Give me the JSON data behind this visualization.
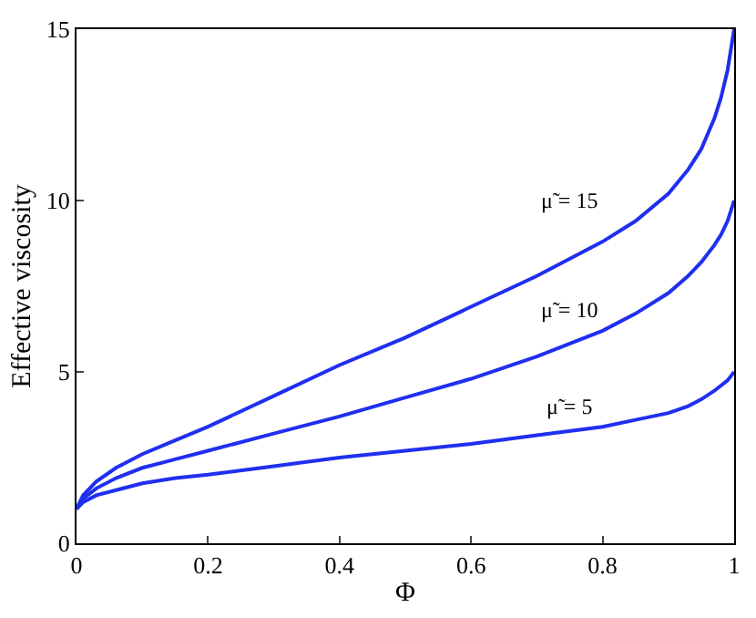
{
  "chart_data": {
    "type": "line",
    "xlabel": "Φ",
    "ylabel": "Effective viscosity",
    "x": [
      0,
      0.01,
      0.03,
      0.06,
      0.1,
      0.15,
      0.2,
      0.3,
      0.4,
      0.5,
      0.6,
      0.7,
      0.8,
      0.85,
      0.9,
      0.93,
      0.95,
      0.97,
      0.98,
      0.99,
      1
    ],
    "series": [
      {
        "color": "#1f2ff0",
        "values": [
          1,
          1.4,
          1.8,
          2.2,
          2.6,
          3.0,
          3.4,
          4.3,
          5.2,
          6.0,
          6.9,
          7.8,
          8.8,
          9.4,
          10.2,
          10.9,
          11.5,
          12.4,
          13.0,
          13.8,
          15
        ]
      },
      {
        "color": "#1f2ff0",
        "values": [
          1,
          1.3,
          1.6,
          1.9,
          2.2,
          2.45,
          2.7,
          3.2,
          3.7,
          4.25,
          4.8,
          5.45,
          6.2,
          6.7,
          7.3,
          7.8,
          8.2,
          8.7,
          9.0,
          9.4,
          10
        ]
      },
      {
        "color": "#1f2ff0",
        "values": [
          1,
          1.2,
          1.4,
          1.55,
          1.75,
          1.9,
          2.0,
          2.25,
          2.5,
          2.7,
          2.9,
          3.15,
          3.4,
          3.6,
          3.8,
          4.0,
          4.2,
          4.45,
          4.6,
          4.75,
          5
        ]
      }
    ],
    "annotations": [
      "μ̃ = 15",
      "μ̃ = 10",
      "μ̃ = 5"
    ],
    "xlim": [
      0,
      1
    ],
    "ylim": [
      0,
      15
    ],
    "xticks": [
      0,
      0.2,
      0.4,
      0.6,
      0.8,
      1
    ],
    "yticks": [
      0,
      5,
      10,
      15
    ],
    "marker": "none",
    "line_style": "solid"
  }
}
